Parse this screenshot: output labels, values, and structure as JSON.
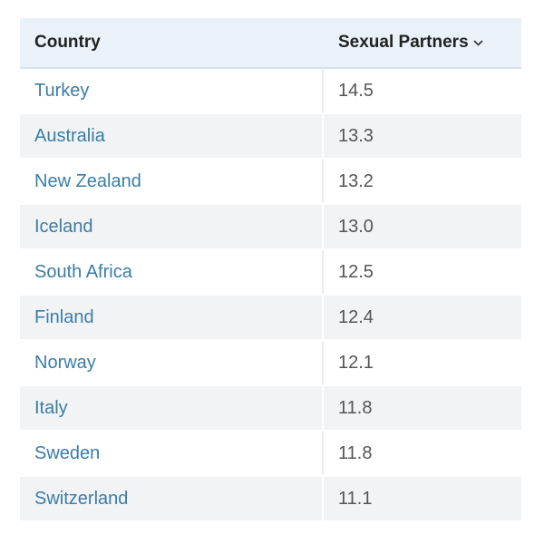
{
  "table": {
    "header": [
      "Country",
      "Sexual Partners"
    ],
    "rows": [
      [
        "Turkey",
        "14.5"
      ],
      [
        "Australia",
        "13.3"
      ],
      [
        "New Zealand",
        "13.2"
      ],
      [
        "Iceland",
        "13.0"
      ],
      [
        "South Africa",
        "12.5"
      ],
      [
        "Finland",
        "12.4"
      ],
      [
        "Norway",
        "12.1"
      ],
      [
        "Italy",
        "11.8"
      ],
      [
        "Sweden",
        "11.8"
      ],
      [
        "Switzerland",
        "11.1"
      ]
    ]
  }
}
